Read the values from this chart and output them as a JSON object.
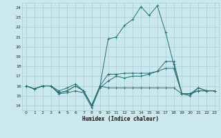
{
  "xlabel": "Humidex (Indice chaleur)",
  "xlim": [
    -0.5,
    23.5
  ],
  "ylim": [
    13.5,
    24.5
  ],
  "xticks": [
    0,
    1,
    2,
    3,
    4,
    5,
    6,
    7,
    8,
    9,
    10,
    11,
    12,
    13,
    14,
    15,
    16,
    17,
    18,
    19,
    20,
    21,
    22,
    23
  ],
  "yticks": [
    14,
    15,
    16,
    17,
    18,
    19,
    20,
    21,
    22,
    23,
    24
  ],
  "bg_color": "#cce8ef",
  "grid_color": "#aaccd4",
  "line_color": "#1e7070",
  "series": [
    [
      16.0,
      15.7,
      16.0,
      16.0,
      15.2,
      15.3,
      15.5,
      15.3,
      13.8,
      15.8,
      16.5,
      17.0,
      16.8,
      17.0,
      17.0,
      17.2,
      17.5,
      18.5,
      18.5,
      15.2,
      15.0,
      15.8,
      15.5,
      15.5
    ],
    [
      16.0,
      15.7,
      16.0,
      16.0,
      15.3,
      15.5,
      16.0,
      15.5,
      14.0,
      16.0,
      17.2,
      17.2,
      17.3,
      17.3,
      17.3,
      17.3,
      17.5,
      17.8,
      17.8,
      15.2,
      15.2,
      15.5,
      15.5,
      15.5
    ],
    [
      16.0,
      15.7,
      16.0,
      16.0,
      15.3,
      15.5,
      16.0,
      15.5,
      14.0,
      16.0,
      15.8,
      15.8,
      15.8,
      15.8,
      15.8,
      15.8,
      15.8,
      15.8,
      15.8,
      15.2,
      15.2,
      15.5,
      15.5,
      15.5
    ],
    [
      16.0,
      15.7,
      16.0,
      16.0,
      15.5,
      15.8,
      16.2,
      15.5,
      14.0,
      16.0,
      20.8,
      21.0,
      22.2,
      22.8,
      24.1,
      23.2,
      24.2,
      21.5,
      18.2,
      15.2,
      15.2,
      15.8,
      15.5,
      15.5
    ]
  ]
}
